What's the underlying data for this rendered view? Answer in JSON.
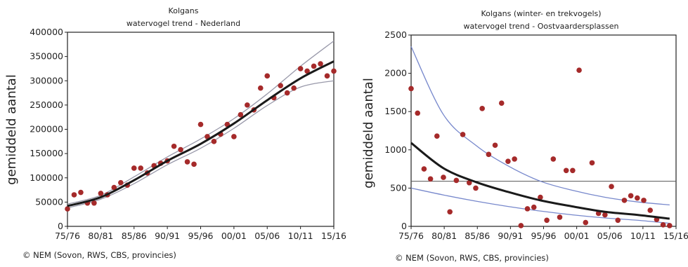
{
  "chart_data": [
    {
      "type": "scatter",
      "title": "Kolgans",
      "subtitle": "watervogel trend - Nederland",
      "ylabel": "gemiddeld aantal",
      "credit": "© NEM (Sovon, RWS, CBS, provincies)",
      "ylim": [
        0,
        400000
      ],
      "yticks": [
        "0",
        "50000",
        "100000",
        "150000",
        "200000",
        "250000",
        "300000",
        "350000",
        "400000"
      ],
      "xticks": [
        "75/76",
        "80/81",
        "85/86",
        "90/91",
        "95/96",
        "00/01",
        "05/06",
        "10/11",
        "15/16"
      ],
      "xrange": [
        1975,
        2015
      ],
      "points": {
        "x": [
          1975,
          1976,
          1977,
          1978,
          1979,
          1980,
          1981,
          1982,
          1983,
          1984,
          1985,
          1986,
          1987,
          1988,
          1989,
          1990,
          1991,
          1992,
          1993,
          1994,
          1995,
          1996,
          1997,
          1998,
          1999,
          2000,
          2001,
          2002,
          2003,
          2004,
          2005,
          2006,
          2007,
          2008,
          2009,
          2010,
          2011,
          2012,
          2013,
          2014,
          2015
        ],
        "y": [
          36000,
          65000,
          70000,
          48000,
          48000,
          68000,
          65000,
          80000,
          90000,
          85000,
          120000,
          120000,
          110000,
          125000,
          130000,
          135000,
          165000,
          158000,
          133000,
          128000,
          210000,
          185000,
          175000,
          190000,
          210000,
          185000,
          230000,
          250000,
          240000,
          285000,
          310000,
          265000,
          290000,
          275000,
          285000,
          325000,
          320000,
          330000,
          335000,
          310000,
          320000
        ]
      },
      "trend": {
        "x": [
          1975,
          1980,
          1985,
          1990,
          1995,
          2000,
          2005,
          2010,
          2015
        ],
        "y": [
          42000,
          60000,
          95000,
          135000,
          170000,
          212000,
          260000,
          305000,
          340000
        ]
      },
      "ci_upper": {
        "x": [
          1975,
          1980,
          1985,
          1990,
          1995,
          2000,
          2005,
          2010,
          2015
        ],
        "y": [
          46000,
          64000,
          102000,
          143000,
          180000,
          222000,
          273000,
          330000,
          382000
        ]
      },
      "ci_lower": {
        "x": [
          1975,
          1980,
          1985,
          1990,
          1995,
          2000,
          2005,
          2010,
          2015
        ],
        "y": [
          38000,
          56000,
          88000,
          127000,
          161000,
          202000,
          249000,
          287000,
          300000
        ]
      },
      "colors": {
        "points": "#a52a2a",
        "trend": "#1a1a1a",
        "ci": "#9999aa"
      }
    },
    {
      "type": "scatter",
      "title": "Kolgans (winter- en trekvogels)",
      "subtitle": "watervogel trend - Oostvaardersplassen",
      "ylabel": "gemiddeld aantal",
      "credit": "© NEM (Sovon, RWS, CBS, provincies)",
      "ylim": [
        0,
        2500
      ],
      "yticks": [
        "0",
        "500",
        "1000",
        "1500",
        "2000",
        "2500"
      ],
      "xticks": [
        "75/76",
        "80/81",
        "85/86",
        "90/91",
        "95/96",
        "00/01",
        "05/06",
        "10/11",
        "15/16"
      ],
      "xrange": [
        1975,
        2016
      ],
      "points": {
        "x": [
          1975,
          1976,
          1977,
          1978,
          1979,
          1980,
          1981,
          1982,
          1983,
          1984,
          1985,
          1986,
          1987,
          1988,
          1989,
          1990,
          1991,
          1992,
          1993,
          1994,
          1995,
          1996,
          1997,
          1998,
          1999,
          2000,
          2001,
          2002,
          2003,
          2004,
          2005,
          2006,
          2007,
          2008,
          2009,
          2010,
          2011,
          2012,
          2013,
          2014,
          2015
        ],
        "y": [
          1800,
          1480,
          750,
          620,
          1180,
          640,
          190,
          600,
          1200,
          570,
          500,
          1540,
          940,
          1060,
          1610,
          850,
          880,
          10,
          230,
          250,
          380,
          80,
          880,
          120,
          730,
          730,
          2040,
          50,
          830,
          170,
          150,
          520,
          80,
          340,
          400,
          370,
          340,
          210,
          90,
          20,
          10
        ]
      },
      "trend": {
        "x": [
          1975,
          1980,
          1985,
          1990,
          1995,
          2000,
          2005,
          2010,
          2015
        ],
        "y": [
          1090,
          760,
          580,
          450,
          340,
          260,
          190,
          150,
          100
        ]
      },
      "ci_upper": {
        "x": [
          1975,
          1980,
          1985,
          1990,
          1995,
          2000,
          2005,
          2010,
          2015
        ],
        "y": [
          2350,
          1460,
          1060,
          790,
          590,
          470,
          380,
          320,
          280
        ]
      },
      "ci_lower": {
        "x": [
          1975,
          1980,
          1985,
          1990,
          1995,
          2000,
          2005,
          2010,
          2015
        ],
        "y": [
          500,
          410,
          330,
          260,
          200,
          150,
          110,
          80,
          40
        ]
      },
      "reference_line": 590,
      "colors": {
        "points": "#a52a2a",
        "trend": "#1a1a1a",
        "ci": "#7788cc",
        "reference": "#555555"
      }
    }
  ]
}
